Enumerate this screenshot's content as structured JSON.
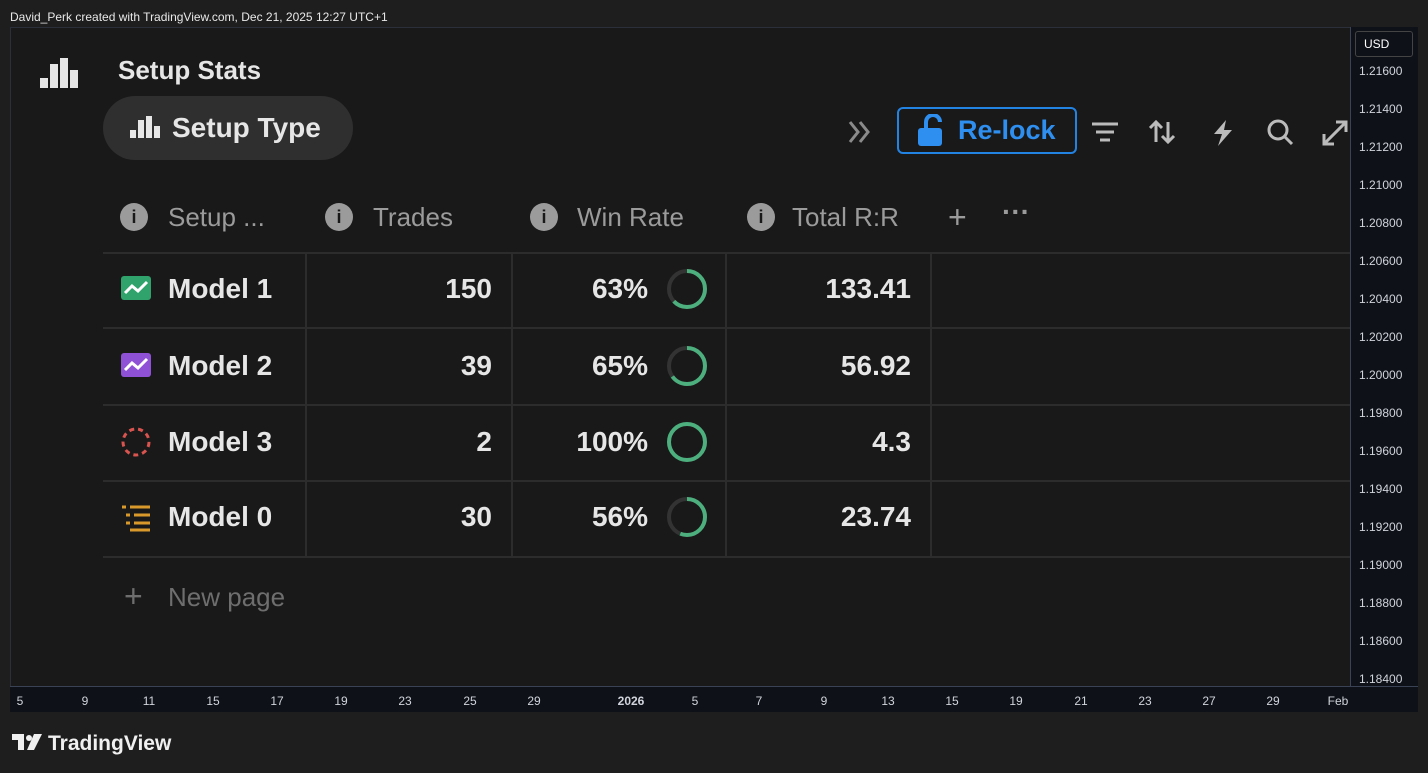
{
  "header": {
    "credit": "David_Perk created with TradingView.com, Dec 21, 2025 12:27 UTC+1"
  },
  "panel": {
    "title": "Setup Stats",
    "tab": "Setup Type",
    "button": "Re-lock"
  },
  "table": {
    "columns": [
      "Setup ...",
      "Trades",
      "Win Rate",
      "Total R:R"
    ],
    "rows": [
      {
        "name": "Model 1",
        "trades": 150,
        "win_rate": {
          "value": 63,
          "label": "63%"
        },
        "total_rr": 133.41
      },
      {
        "name": "Model 2",
        "trades": 39,
        "win_rate": {
          "value": 65,
          "label": "65%"
        },
        "total_rr": 56.92
      },
      {
        "name": "Model 3",
        "trades": 2,
        "win_rate": {
          "value": 100,
          "label": "100%"
        },
        "total_rr": 4.3
      },
      {
        "name": "Model 0",
        "trades": 30,
        "win_rate": {
          "value": 56,
          "label": "56%"
        },
        "total_rr": 23.74
      }
    ],
    "new_row": "New page"
  },
  "price_axis": {
    "currency": "USD",
    "labels": [
      "1.21600",
      "1.21400",
      "1.21200",
      "1.21000",
      "1.20800",
      "1.20600",
      "1.20400",
      "1.20200",
      "1.20000",
      "1.19800",
      "1.19600",
      "1.19400",
      "1.19200",
      "1.19000",
      "1.18800",
      "1.18600",
      "1.18400"
    ]
  },
  "time_axis": {
    "labels": [
      "5",
      "9",
      "11",
      "15",
      "17",
      "19",
      "23",
      "25",
      "29",
      "2026",
      "5",
      "7",
      "9",
      "13",
      "15",
      "19",
      "21",
      "23",
      "27",
      "29",
      "Feb"
    ]
  },
  "footer": {
    "brand": "TradingView"
  }
}
